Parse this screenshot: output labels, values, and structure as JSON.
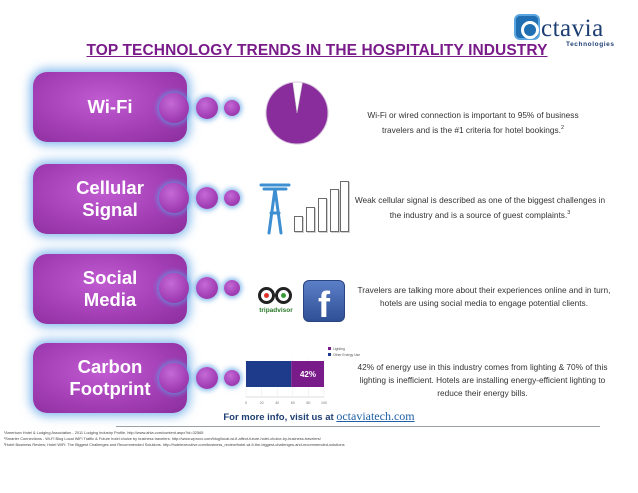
{
  "header": {
    "title": "TOP TECHNOLOGY TRENDS IN THE HOSPITALITY INDUSTRY",
    "logo_word": "ctavia",
    "logo_sub": "Technologies",
    "colors": {
      "title": "#7a1b8a",
      "pill": "#a43fb6",
      "glow": "#58a0e6",
      "logo": "#1e3f73"
    }
  },
  "sections": [
    {
      "label": "Wi-Fi",
      "desc": "Wi-Fi or wired connection is important to 95% of business travelers and is the #1 criteria for hotel bookings.",
      "ref": "2",
      "icon": "pie-chart-icon"
    },
    {
      "label": "Cellular\nSignal",
      "desc": "Weak cellular signal is described as one of the biggest challenges in the industry and is a source of guest complaints.",
      "ref": "3",
      "icon": "signal-bars-icon"
    },
    {
      "label": "Social\nMedia",
      "desc": "Travelers are talking more about their experiences online and in turn, hotels are using social media to engage potential clients.",
      "icon": "social-media-icons"
    },
    {
      "label": "Carbon\nFootprint",
      "desc": "42% of energy use in this industry comes from lighting & 70% of this lighting is inefficient. Hotels are installing energy-efficient lighting to reduce their energy bills.",
      "icon": "bar-chart-icon"
    }
  ],
  "social": {
    "tripadvisor": "tripadvisor",
    "facebook": "f"
  },
  "chart_data": [
    {
      "type": "pie",
      "values": [
        95,
        5
      ],
      "colors": [
        "#8a2d9c",
        "#ffffff"
      ]
    },
    {
      "type": "bar",
      "orientation": "horizontal",
      "stacked": true,
      "series": [
        {
          "name": "Lighting",
          "values": [
            42
          ],
          "color": "#7a1b8a"
        },
        {
          "name": "Other Energy Use",
          "values": [
            58
          ],
          "color": "#1e3a8a"
        }
      ],
      "data_label": "42%",
      "xlim": [
        0,
        100
      ],
      "ticks": [
        "0",
        "20",
        "40",
        "60",
        "80",
        "100"
      ],
      "legend": "top-right"
    }
  ],
  "footer": {
    "more_text": "For more info, visit us at",
    "site": "octaviatech.com",
    "refs": [
      "¹American Hotel & Lodging Association - 2011 Lodging Industry Profile. http://www.ahla.com/content.aspx?id=32565",
      "²Smarter Connections - Wi-Fi Blog Local WiFi Traffic & Future hotel choice by business travelers: http://www.wproxx.com/blog/local-wi-fi-affect-future-hotel-choice-by-business-travelers/",
      "³Hotel Business Review; Hotel WiFi: The Biggest Challenges and Recommended Solutions. http://hotelexecutive.com/business_review/hotel-wi-fi-the-biggest-challenges-and-recommended-solutions"
    ]
  }
}
